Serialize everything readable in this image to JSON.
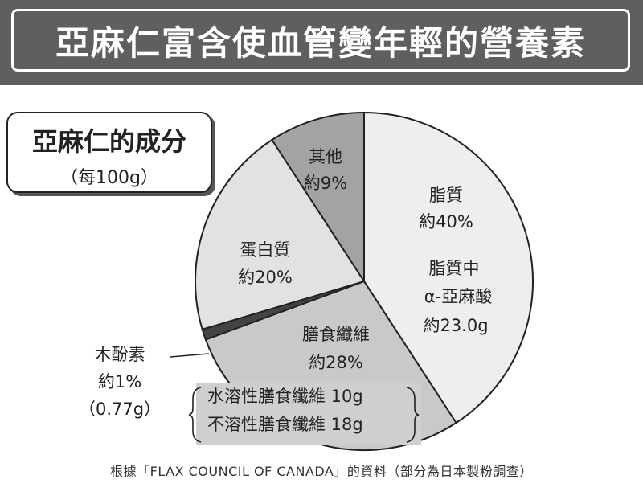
{
  "banner": {
    "title": "亞麻仁富含使血管變年輕的營養素"
  },
  "box": {
    "title": "亞麻仁的成分",
    "subtitle": "（每100g）"
  },
  "chart_data": {
    "type": "pie",
    "categories": [
      "脂質",
      "膳食纖維",
      "木酚素",
      "蛋白質",
      "其他"
    ],
    "values": [
      40,
      28,
      1,
      20,
      9
    ],
    "labels": [
      "約40%",
      "約28%",
      "約1%",
      "約20%",
      "約9%"
    ],
    "colors": [
      "#eeeeee",
      "#c9c9c9",
      "#444444",
      "#e2e2e2",
      "#a3a3a3"
    ],
    "annotations": {
      "lipid_detail": [
        "脂質中",
        "α-亞麻酸",
        "約23.0g"
      ],
      "lignan_detail": "（0.77g）",
      "fiber_detail": [
        "水溶性膳食纖維 10g",
        "不溶性膳食纖維 18g"
      ]
    }
  },
  "source": {
    "text": "根據「FLAX COUNCIL OF CANADA」的資料（部分為日本製粉調查）"
  }
}
